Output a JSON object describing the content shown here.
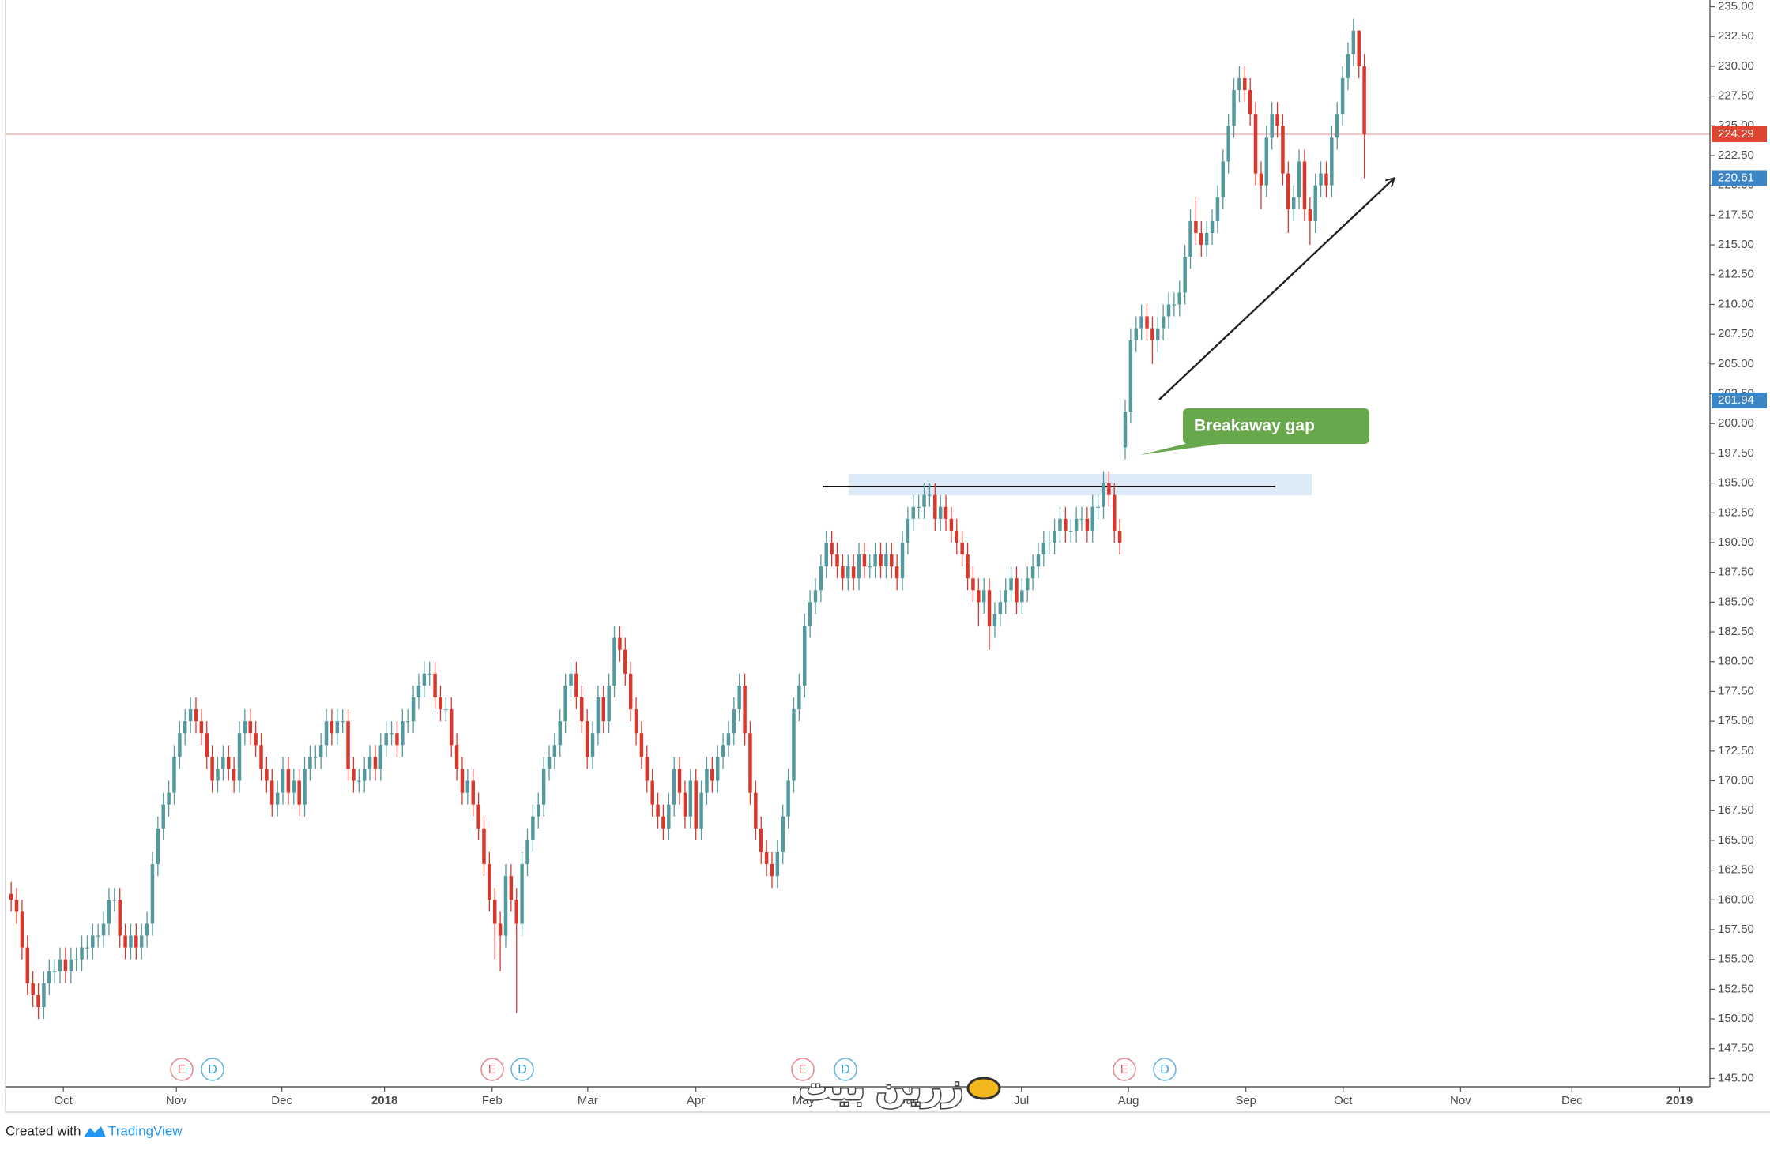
{
  "chart_data": {
    "type": "candlestick",
    "up_color": "#53999d",
    "down_color": "#d9372c",
    "xlim": [
      -1.04,
      312.6
    ],
    "ylim": [
      144.3,
      235.1
    ],
    "xticks": [
      {
        "value": 9.6,
        "label": "Oct"
      },
      {
        "value": 30.4,
        "label": "Nov"
      },
      {
        "value": 49.8,
        "label": "Dec"
      },
      {
        "value": 68.7,
        "label": "2018"
      },
      {
        "value": 88.5,
        "label": "Feb"
      },
      {
        "value": 106.1,
        "label": "Mar"
      },
      {
        "value": 126,
        "label": "Apr"
      },
      {
        "value": 145.8,
        "label": "May"
      },
      {
        "value": 165.3,
        "label": "Jun"
      },
      {
        "value": 185.9,
        "label": "Jul"
      },
      {
        "value": 205.6,
        "label": "Aug"
      },
      {
        "value": 227.2,
        "label": "Sep"
      },
      {
        "value": 245.1,
        "label": "Oct"
      },
      {
        "value": 266.7,
        "label": "Nov"
      },
      {
        "value": 287.2,
        "label": "Dec"
      },
      {
        "value": 307,
        "label": "2019"
      }
    ],
    "yticks": [
      {
        "value": 145,
        "label": "145.00"
      },
      {
        "value": 147.5,
        "label": "147.50"
      },
      {
        "value": 150,
        "label": "150.00"
      },
      {
        "value": 152.5,
        "label": "152.50"
      },
      {
        "value": 155,
        "label": "155.00"
      },
      {
        "value": 157.5,
        "label": "157.50"
      },
      {
        "value": 160,
        "label": "160.00"
      },
      {
        "value": 162.5,
        "label": "162.50"
      },
      {
        "value": 165,
        "label": "165.00"
      },
      {
        "value": 167.5,
        "label": "167.50"
      },
      {
        "value": 170,
        "label": "170.00"
      },
      {
        "value": 172.5,
        "label": "172.50"
      },
      {
        "value": 175,
        "label": "175.00"
      },
      {
        "value": 177.5,
        "label": "177.50"
      },
      {
        "value": 180,
        "label": "180.00"
      },
      {
        "value": 182.5,
        "label": "182.50"
      },
      {
        "value": 185,
        "label": "185.00"
      },
      {
        "value": 187.5,
        "label": "187.50"
      },
      {
        "value": 190,
        "label": "190.00"
      },
      {
        "value": 192.5,
        "label": "192.50"
      },
      {
        "value": 195,
        "label": "195.00"
      },
      {
        "value": 197.5,
        "label": "197.50"
      },
      {
        "value": 200,
        "label": "200.00"
      },
      {
        "value": 202.5,
        "label": "202.50"
      },
      {
        "value": 205,
        "label": "205.00"
      },
      {
        "value": 207.5,
        "label": "207.50"
      },
      {
        "value": 210,
        "label": "210.00"
      },
      {
        "value": 212.5,
        "label": "212.50"
      },
      {
        "value": 215,
        "label": "215.00"
      },
      {
        "value": 217.5,
        "label": "217.50"
      },
      {
        "value": 220,
        "label": "220.00"
      },
      {
        "value": 222.5,
        "label": "222.50"
      },
      {
        "value": 225,
        "label": "225.00"
      },
      {
        "value": 227.5,
        "label": "227.50"
      },
      {
        "value": 230,
        "label": "230.00"
      },
      {
        "value": 232.5,
        "label": "232.50"
      },
      {
        "value": 235,
        "label": "235.00"
      }
    ],
    "open": [
      160.5,
      160,
      159,
      156,
      153,
      152,
      151,
      153,
      154,
      154,
      155,
      154,
      155,
      155,
      156,
      156,
      157,
      157,
      158,
      160,
      160,
      157,
      156,
      157,
      156,
      157,
      158,
      163,
      166,
      168,
      169,
      172,
      174,
      175,
      176,
      175,
      174,
      172,
      170,
      171,
      172,
      171,
      170,
      174,
      175,
      174,
      173,
      171,
      170,
      168,
      169,
      171,
      169,
      170,
      168,
      171,
      172,
      172,
      173,
      175,
      174,
      175,
      175,
      171,
      170,
      170,
      171,
      172,
      171,
      173,
      174,
      174,
      173,
      175,
      175,
      177,
      178,
      179,
      179,
      177,
      176,
      176,
      173,
      171,
      169,
      170,
      168,
      166,
      163,
      160,
      158,
      157,
      162,
      160,
      158,
      163,
      165,
      167,
      168,
      171,
      172,
      173,
      175,
      178,
      179,
      177,
      175,
      172,
      174,
      177,
      175,
      178,
      182,
      181,
      179,
      176,
      174,
      172,
      170,
      168,
      167,
      166,
      168,
      171,
      169,
      167,
      170,
      166,
      169,
      171,
      170,
      172,
      173,
      174,
      176,
      178,
      174,
      169,
      166,
      164,
      163,
      162,
      164,
      167,
      170,
      176,
      178,
      183,
      185,
      186,
      188,
      190,
      189,
      188,
      187,
      188,
      187,
      189,
      188,
      188,
      189,
      188,
      189,
      188,
      187,
      190,
      192,
      193,
      193,
      194,
      194,
      192,
      193,
      192,
      191,
      190,
      189,
      187,
      186,
      185,
      186,
      183,
      184,
      185,
      186,
      187,
      185,
      186,
      187,
      188,
      189,
      190,
      190,
      191,
      192,
      191,
      191,
      192,
      192,
      191,
      193,
      193,
      195,
      194,
      191,
      198,
      201,
      207,
      208,
      209,
      208,
      207,
      208,
      209,
      210,
      210,
      211,
      214,
      217,
      216,
      215,
      216,
      217,
      219,
      222,
      225,
      228,
      229,
      228,
      226,
      221,
      220,
      224,
      226,
      225,
      221,
      218,
      219,
      222,
      218,
      217,
      220,
      221,
      220,
      224,
      226,
      229,
      231,
      233,
      230
    ],
    "high": [
      161.5,
      161,
      160,
      157,
      154,
      153,
      154,
      155,
      155,
      156,
      156,
      156,
      156,
      157,
      157,
      158,
      158,
      159,
      161,
      161,
      161,
      158,
      158,
      158,
      158,
      159,
      164,
      167,
      169,
      170,
      173,
      175,
      176,
      177,
      177,
      176,
      175,
      173,
      172,
      173,
      173,
      172,
      175,
      176,
      176,
      175,
      174,
      172,
      171,
      170,
      172,
      172,
      171,
      171,
      172,
      173,
      173,
      174,
      176,
      176,
      176,
      176,
      176,
      172,
      171,
      172,
      173,
      173,
      174,
      175,
      175,
      175,
      176,
      176,
      178,
      179,
      180,
      180,
      180,
      178,
      177,
      177,
      174,
      172,
      171,
      171,
      169,
      167,
      164,
      161,
      159,
      163,
      163,
      161,
      164,
      166,
      168,
      169,
      172,
      173,
      174,
      176,
      179,
      180,
      180,
      178,
      176,
      175,
      178,
      178,
      179,
      183,
      183,
      182,
      180,
      177,
      175,
      173,
      171,
      169,
      168,
      169,
      172,
      172,
      170,
      171,
      171,
      170,
      172,
      172,
      173,
      174,
      175,
      177,
      179,
      179,
      175,
      170,
      167,
      165,
      164,
      165,
      168,
      171,
      177,
      179,
      184,
      186,
      187,
      189,
      191,
      191,
      190,
      189,
      189,
      189,
      190,
      190,
      189,
      190,
      190,
      190,
      190,
      189,
      191,
      193,
      194,
      194,
      195,
      195,
      195,
      194,
      194,
      193,
      192,
      191,
      190,
      188,
      187,
      187,
      187,
      185,
      186,
      187,
      188,
      188,
      187,
      188,
      189,
      190,
      191,
      191,
      192,
      193,
      193,
      192,
      193,
      193,
      193,
      194,
      194,
      196,
      196,
      195,
      192,
      202,
      208,
      209,
      210,
      210,
      209,
      209,
      210,
      211,
      211,
      212,
      215,
      218,
      219,
      217,
      217,
      218,
      220,
      223,
      226,
      229,
      230,
      230,
      229,
      227,
      222,
      225,
      227,
      227,
      226,
      222,
      220,
      223,
      223,
      219,
      221,
      222,
      222,
      225,
      227,
      230,
      232,
      234,
      233,
      231
    ],
    "low": [
      159,
      158,
      155,
      152,
      151,
      150,
      150,
      152,
      153,
      153,
      153,
      153,
      154,
      154,
      155,
      155,
      156,
      156,
      157,
      159,
      156,
      155,
      155,
      155,
      155,
      156,
      157,
      162,
      165,
      167,
      168,
      171,
      173,
      174,
      174,
      173,
      171,
      169,
      169,
      170,
      170,
      169,
      169,
      173,
      173,
      172,
      170,
      169,
      167,
      167,
      168,
      168,
      168,
      167,
      167,
      170,
      171,
      171,
      172,
      173,
      173,
      174,
      170,
      169,
      169,
      169,
      170,
      170,
      170,
      172,
      173,
      172,
      172,
      174,
      174,
      176,
      177,
      178,
      176,
      175,
      175,
      172,
      170,
      168,
      168,
      167,
      165,
      162,
      159,
      155,
      154,
      156,
      159,
      150.5,
      157,
      162,
      164,
      166,
      167,
      170,
      171,
      172,
      174,
      177,
      176,
      174,
      171,
      171,
      173,
      174,
      174,
      177,
      180,
      178,
      175,
      173,
      171,
      169,
      167,
      166,
      165,
      165,
      167,
      168,
      166,
      166,
      165,
      165,
      168,
      169,
      169,
      171,
      172,
      173,
      175,
      173,
      168,
      165,
      163,
      162,
      161,
      161,
      163,
      166,
      169,
      175,
      177,
      182,
      184,
      185,
      187,
      188,
      187,
      186,
      186,
      186,
      186,
      187,
      187,
      187,
      187,
      187,
      187,
      186,
      186,
      189,
      191,
      192,
      192,
      193,
      191,
      191,
      191,
      190,
      189,
      188,
      186,
      185,
      183,
      184,
      181,
      182,
      183,
      184,
      185,
      184,
      184,
      185,
      186,
      187,
      188,
      189,
      189,
      190,
      190,
      190,
      190,
      191,
      190,
      190,
      192,
      192,
      193,
      190,
      189,
      197,
      200,
      206,
      207,
      207,
      205,
      206,
      207,
      208,
      209,
      209,
      210,
      213,
      215,
      214,
      214,
      215,
      216,
      218,
      221,
      224,
      227,
      227,
      225,
      220,
      218,
      219,
      223,
      224,
      220,
      216,
      217,
      218,
      217,
      215,
      216,
      219,
      219,
      219,
      223,
      225,
      228,
      230,
      229,
      220.61
    ],
    "close": [
      160,
      159,
      156,
      153,
      152,
      151,
      153,
      154,
      154,
      155,
      154,
      155,
      155,
      156,
      156,
      157,
      157,
      158,
      160,
      160,
      157,
      156,
      157,
      156,
      157,
      158,
      163,
      166,
      168,
      169,
      172,
      174,
      175,
      176,
      175,
      174,
      172,
      170,
      171,
      172,
      171,
      170,
      174,
      175,
      174,
      173,
      171,
      170,
      168,
      169,
      171,
      169,
      170,
      168,
      171,
      172,
      172,
      173,
      175,
      174,
      175,
      175,
      171,
      170,
      170,
      171,
      172,
      171,
      173,
      174,
      174,
      173,
      175,
      175,
      177,
      178,
      179,
      179,
      177,
      176,
      176,
      173,
      171,
      169,
      170,
      168,
      166,
      163,
      160,
      158,
      157,
      162,
      160,
      158,
      163,
      165,
      167,
      168,
      171,
      172,
      173,
      175,
      178,
      179,
      177,
      175,
      172,
      174,
      177,
      175,
      178,
      182,
      181,
      179,
      176,
      174,
      172,
      170,
      168,
      167,
      166,
      168,
      171,
      169,
      167,
      170,
      166,
      169,
      171,
      170,
      172,
      173,
      174,
      176,
      178,
      174,
      169,
      166,
      164,
      163,
      162,
      164,
      167,
      170,
      176,
      178,
      183,
      185,
      186,
      188,
      190,
      189,
      188,
      187,
      188,
      187,
      189,
      188,
      188,
      189,
      188,
      189,
      188,
      187,
      190,
      192,
      193,
      193,
      194,
      194,
      192,
      193,
      192,
      191,
      190,
      189,
      187,
      186,
      185,
      186,
      183,
      184,
      185,
      186,
      187,
      185,
      186,
      187,
      188,
      189,
      190,
      190,
      191,
      192,
      191,
      191,
      192,
      192,
      191,
      193,
      193,
      195,
      194,
      191,
      190,
      201,
      207,
      208,
      209,
      208,
      207,
      208,
      209,
      210,
      210,
      211,
      214,
      217,
      216,
      215,
      216,
      217,
      219,
      222,
      225,
      228,
      229,
      228,
      226,
      221,
      220,
      224,
      226,
      225,
      221,
      218,
      219,
      222,
      218,
      217,
      220,
      221,
      220,
      224,
      226,
      229,
      231,
      233,
      230,
      224.29
    ],
    "price_lines": [
      224.29
    ],
    "price_line_color": "#e0432f",
    "price_markers": [
      220.61,
      201.94
    ],
    "price_marker_color": "#3d86c6",
    "annotation": "Breakaway gap",
    "events": [
      "E",
      "D",
      "E",
      "D",
      "E",
      "D",
      "E",
      "D"
    ],
    "event_colors": {
      "E": "#e06670",
      "D": "#3aa0d8"
    },
    "watermark": "زرین بیت",
    "footer": "Created with",
    "footer_brand": "TradingView"
  }
}
